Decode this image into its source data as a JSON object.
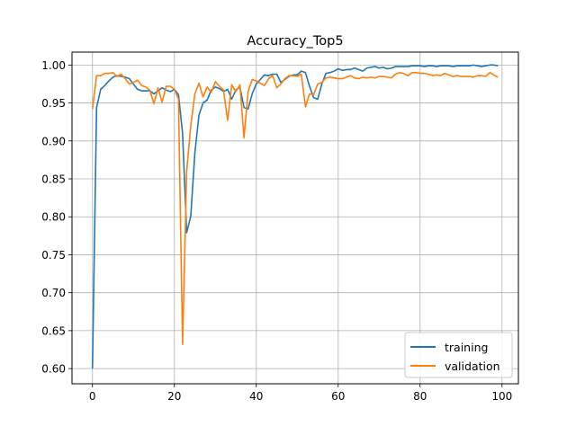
{
  "chart_data": {
    "type": "line",
    "title": "Accuracy_Top5",
    "xlabel": "",
    "ylabel": "",
    "xlim": [
      -5,
      104
    ],
    "ylim": [
      0.58,
      1.017
    ],
    "xticks": [
      0,
      20,
      40,
      60,
      80,
      100
    ],
    "xtick_labels": [
      "0",
      "20",
      "40",
      "60",
      "80",
      "100"
    ],
    "yticks": [
      0.6,
      0.65,
      0.7,
      0.75,
      0.8,
      0.85,
      0.9,
      0.95,
      1.0
    ],
    "ytick_labels": [
      "0.60",
      "0.65",
      "0.70",
      "0.75",
      "0.80",
      "0.85",
      "0.90",
      "0.95",
      "1.00"
    ],
    "grid": true,
    "legend_position": "lower-right",
    "x": [
      0,
      1,
      2,
      3,
      4,
      5,
      6,
      7,
      8,
      9,
      10,
      11,
      12,
      13,
      14,
      15,
      16,
      17,
      18,
      19,
      20,
      21,
      22,
      23,
      24,
      25,
      26,
      27,
      28,
      29,
      30,
      31,
      32,
      33,
      34,
      35,
      36,
      37,
      38,
      39,
      40,
      41,
      42,
      43,
      44,
      45,
      46,
      47,
      48,
      49,
      50,
      51,
      52,
      53,
      54,
      55,
      56,
      57,
      58,
      59,
      60,
      61,
      62,
      63,
      64,
      65,
      66,
      67,
      68,
      69,
      70,
      71,
      72,
      73,
      74,
      75,
      76,
      77,
      78,
      79,
      80,
      81,
      82,
      83,
      84,
      85,
      86,
      87,
      88,
      89,
      90,
      91,
      92,
      93,
      94,
      95,
      96,
      97,
      98,
      99
    ],
    "series": [
      {
        "name": "training",
        "color": "#1f77b4",
        "values": [
          0.6,
          0.944,
          0.968,
          0.973,
          0.979,
          0.984,
          0.986,
          0.985,
          0.984,
          0.982,
          0.975,
          0.968,
          0.966,
          0.966,
          0.966,
          0.962,
          0.966,
          0.97,
          0.967,
          0.965,
          0.968,
          0.961,
          0.91,
          0.779,
          0.801,
          0.884,
          0.934,
          0.95,
          0.954,
          0.967,
          0.971,
          0.969,
          0.965,
          0.968,
          0.955,
          0.967,
          0.971,
          0.944,
          0.942,
          0.962,
          0.975,
          0.981,
          0.987,
          0.986,
          0.988,
          0.988,
          0.977,
          0.981,
          0.985,
          0.987,
          0.987,
          0.992,
          0.99,
          0.972,
          0.957,
          0.955,
          0.975,
          0.989,
          0.99,
          0.992,
          0.995,
          0.993,
          0.994,
          0.994,
          0.996,
          0.994,
          0.992,
          0.996,
          0.997,
          0.998,
          0.996,
          0.997,
          0.995,
          0.996,
          0.998,
          0.998,
          0.998,
          0.998,
          0.999,
          0.999,
          0.999,
          0.998,
          0.999,
          0.999,
          0.998,
          0.999,
          0.999,
          0.999,
          0.998,
          0.999,
          0.999,
          0.999,
          0.999,
          1.0,
          0.999,
          0.998,
          0.999,
          1.0,
          1.0,
          0.999
        ]
      },
      {
        "name": "validation",
        "color": "#ff7f0e",
        "values": [
          0.942,
          0.986,
          0.986,
          0.989,
          0.989,
          0.99,
          0.985,
          0.988,
          0.982,
          0.975,
          0.977,
          0.98,
          0.973,
          0.971,
          0.967,
          0.949,
          0.97,
          0.951,
          0.972,
          0.972,
          0.968,
          0.955,
          0.632,
          0.86,
          0.92,
          0.962,
          0.976,
          0.958,
          0.971,
          0.964,
          0.978,
          0.972,
          0.967,
          0.927,
          0.974,
          0.965,
          0.974,
          0.904,
          0.965,
          0.981,
          0.979,
          0.976,
          0.973,
          0.982,
          0.986,
          0.97,
          0.975,
          0.982,
          0.986,
          0.986,
          0.985,
          0.988,
          0.945,
          0.962,
          0.961,
          0.975,
          0.977,
          0.983,
          0.984,
          0.983,
          0.982,
          0.982,
          0.984,
          0.986,
          0.983,
          0.982,
          0.984,
          0.983,
          0.984,
          0.983,
          0.985,
          0.985,
          0.984,
          0.983,
          0.988,
          0.99,
          0.989,
          0.986,
          0.99,
          0.99,
          0.989,
          0.989,
          0.988,
          0.986,
          0.987,
          0.986,
          0.989,
          0.987,
          0.985,
          0.986,
          0.985,
          0.985,
          0.985,
          0.984,
          0.986,
          0.986,
          0.985,
          0.99,
          0.987,
          0.984
        ]
      }
    ]
  }
}
